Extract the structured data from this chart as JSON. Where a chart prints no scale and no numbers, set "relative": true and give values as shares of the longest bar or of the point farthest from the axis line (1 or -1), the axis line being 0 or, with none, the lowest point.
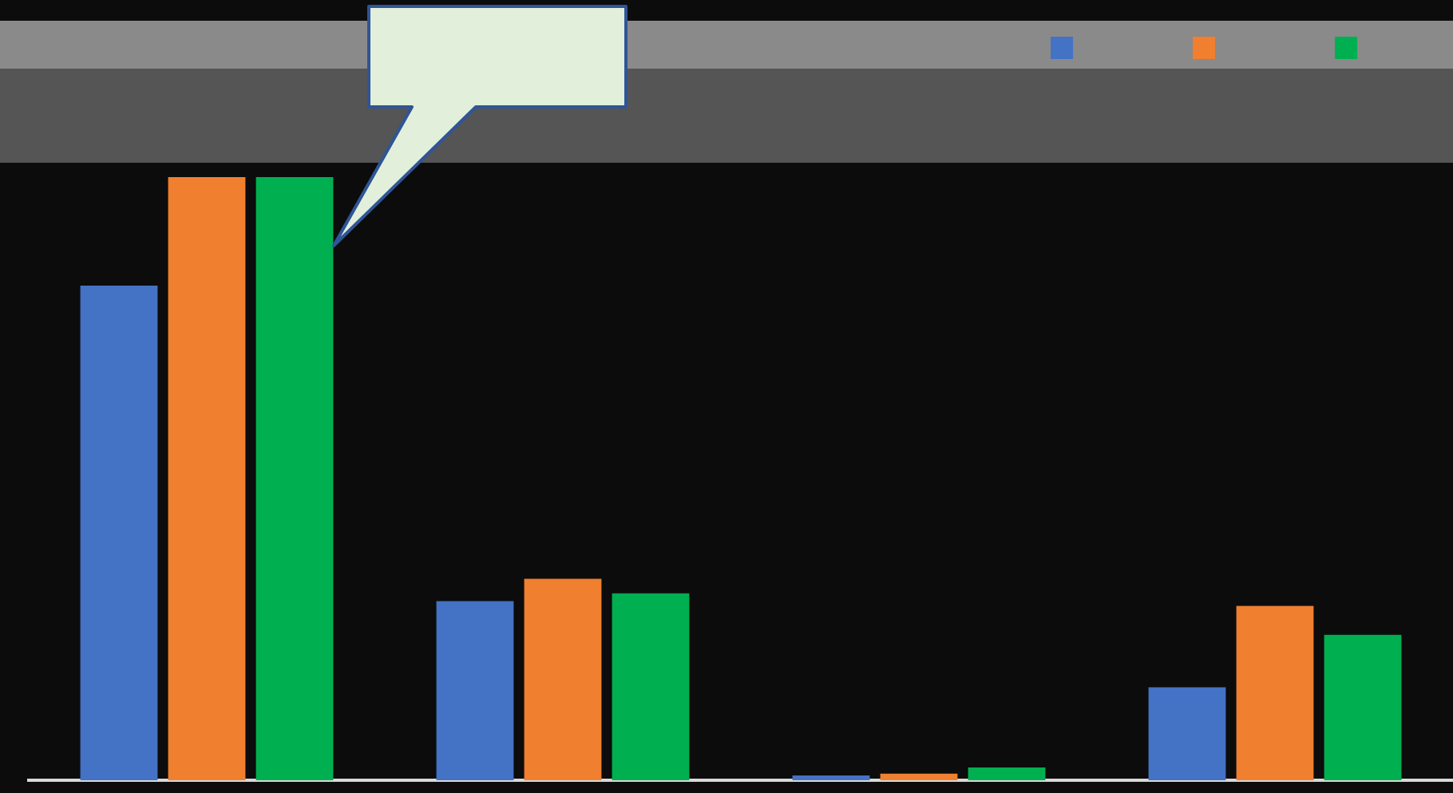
{
  "chart_data": {
    "type": "bar",
    "relative": true,
    "categories": [
      null,
      null,
      null,
      null
    ],
    "series": [
      {
        "color": "#4472c4",
        "values": [
          0.82,
          0.297,
          0.008,
          0.154
        ]
      },
      {
        "color": "#f07f30",
        "values": [
          1,
          0.334,
          0.011,
          0.289
        ]
      },
      {
        "color": "#00b050",
        "values": [
          1,
          0.31,
          0.021,
          0.241
        ]
      }
    ],
    "legend": false
  }
}
